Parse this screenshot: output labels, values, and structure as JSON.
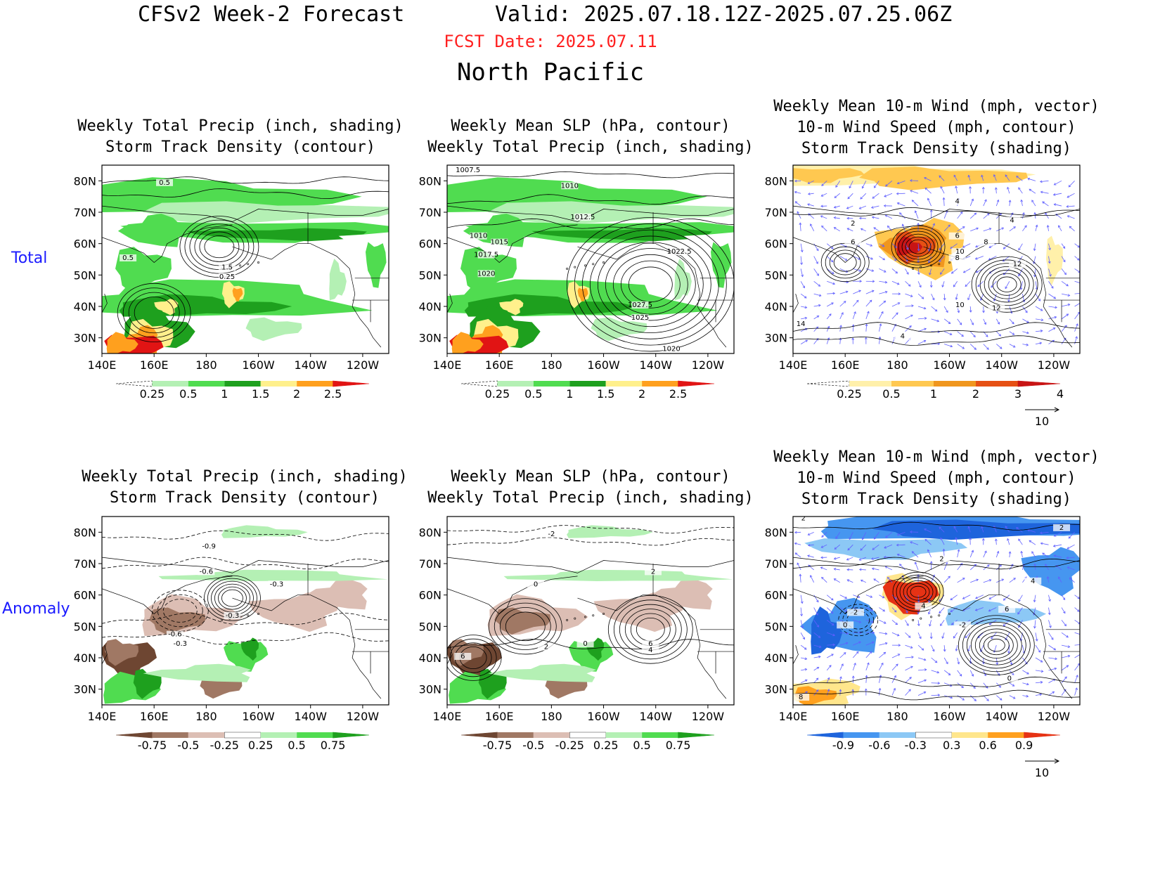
{
  "header": {
    "title": "CFSv2 Week-2 Forecast",
    "valid": "Valid: 2025.07.18.12Z-2025.07.25.06Z",
    "fcst_date": "FCST Date: 2025.07.11",
    "region": "North Pacific"
  },
  "rows": [
    "Total",
    "Anomaly"
  ],
  "colors": {
    "fcst_date": "#ff2020",
    "row_label": "#1a1aff",
    "vector": "#6060ff"
  },
  "axes": {
    "lon_ticks": [
      "140E",
      "160E",
      "180",
      "160W",
      "140W",
      "120W"
    ],
    "lat_ticks": [
      "80N",
      "70N",
      "60N",
      "50N",
      "40N",
      "30N"
    ]
  },
  "panels": [
    {
      "row": "Total",
      "title_lines": [
        "Weekly Total Precip (inch, shading)",
        "Storm Track Density (contour)"
      ],
      "shading_colors": [
        "#ffffff",
        "#b4f0b4",
        "#50dc50",
        "#1ea01e",
        "#fff08c",
        "#ffa01e",
        "#e11414"
      ],
      "colorbar_labels": [
        "0.25",
        "0.5",
        "1",
        "1.5",
        "2",
        "2.5"
      ],
      "contour_labels": [
        "0.5",
        "0.5",
        "1.5",
        "0.25"
      ],
      "vector_ref": ""
    },
    {
      "row": "Total",
      "title_lines": [
        "Weekly Mean SLP (hPa, contour)",
        "Weekly Total Precip (inch, shading)"
      ],
      "shading_colors": [
        "#ffffff",
        "#b4f0b4",
        "#50dc50",
        "#1ea01e",
        "#fff08c",
        "#ffa01e",
        "#e11414"
      ],
      "colorbar_labels": [
        "0.25",
        "0.5",
        "1",
        "1.5",
        "2",
        "2.5"
      ],
      "contour_labels": [
        "1007.5",
        "1010",
        "1012.5",
        "1010",
        "1015",
        "1017.5",
        "1020",
        "1022.5",
        "1027.5",
        "1025",
        "1020"
      ],
      "vector_ref": ""
    },
    {
      "row": "Total",
      "title_lines": [
        "Weekly Mean 10-m Wind (mph, vector)",
        "10-m Wind Speed (mph, contour)",
        "Storm Track Density (shading)"
      ],
      "shading_colors": [
        "#ffffff",
        "#fff0aa",
        "#ffc850",
        "#f0961e",
        "#e65014",
        "#c81414"
      ],
      "colorbar_labels": [
        "0.25",
        "0.5",
        "1",
        "2",
        "3",
        "4"
      ],
      "contour_labels": [
        "4",
        "4",
        "2",
        "6",
        "6",
        "8",
        "10",
        "8",
        "12",
        "10",
        "12",
        "14",
        "4"
      ],
      "vector_ref": "10"
    },
    {
      "row": "Anomaly",
      "title_lines": [
        "Weekly Total Precip (inch, shading)",
        "Storm Track Density (contour)"
      ],
      "shading_colors": [
        "#6e4632",
        "#a07864",
        "#dcbeb4",
        "#ffffff",
        "#b4f0b4",
        "#50dc50",
        "#1ea01e"
      ],
      "colorbar_labels": [
        "-0.75",
        "-0.5",
        "-0.25",
        "0.25",
        "0.5",
        "0.75"
      ],
      "contour_labels": [
        "-0.9",
        "-0.6",
        "-0.3",
        "-0.3",
        "-0.6",
        "-0.3"
      ],
      "vector_ref": ""
    },
    {
      "row": "Anomaly",
      "title_lines": [
        "Weekly Mean SLP (hPa, contour)",
        "Weekly Total Precip (inch, shading)"
      ],
      "shading_colors": [
        "#6e4632",
        "#a07864",
        "#dcbeb4",
        "#ffffff",
        "#b4f0b4",
        "#50dc50",
        "#1ea01e"
      ],
      "colorbar_labels": [
        "-0.75",
        "-0.5",
        "-0.25",
        "0.25",
        "0.5",
        "0.75"
      ],
      "contour_labels": [
        "-2",
        "0",
        "2",
        "6",
        "2",
        "0",
        "6",
        "4"
      ],
      "vector_ref": ""
    },
    {
      "row": "Anomaly",
      "title_lines": [
        "Weekly Mean 10-m Wind (mph, vector)",
        "10-m Wind Speed (mph, contour)",
        "Storm Track Density (shading)"
      ],
      "shading_colors": [
        "#1e64dc",
        "#4696f0",
        "#8cc8f5",
        "#ffffff",
        "#ffe68c",
        "#ffa01e",
        "#e63214"
      ],
      "colorbar_labels": [
        "-0.9",
        "-0.6",
        "-0.3",
        "0.3",
        "0.6",
        "0.9"
      ],
      "contour_labels": [
        "2",
        "2",
        "2",
        "4",
        "2",
        "0",
        "6",
        "-2",
        "4",
        "0",
        "8"
      ],
      "vector_ref": "10"
    }
  ]
}
